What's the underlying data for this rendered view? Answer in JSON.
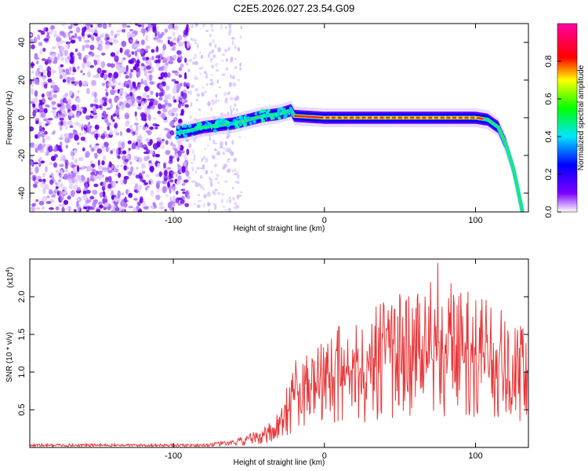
{
  "title": "C2E5.2026.027.23.54.G09",
  "chart_data": [
    {
      "type": "heatmap",
      "name": "spectrogram",
      "xlabel": "Height of straight line (km)",
      "ylabel": "Frequency (Hz)",
      "xlim": [
        -195,
        135
      ],
      "ylim": [
        -50,
        50
      ],
      "xticks": [
        -100,
        0,
        100
      ],
      "yticks": [
        -40,
        -20,
        0,
        20,
        40
      ],
      "noise_region_x": [
        -195,
        -90
      ],
      "noise_sparse_x": [
        -90,
        -55
      ],
      "track": [
        {
          "x": -98,
          "y": -8
        },
        {
          "x": -90,
          "y": -7
        },
        {
          "x": -80,
          "y": -5
        },
        {
          "x": -70,
          "y": -4
        },
        {
          "x": -60,
          "y": -3
        },
        {
          "x": -50,
          "y": -1
        },
        {
          "x": -40,
          "y": 1
        },
        {
          "x": -30,
          "y": 2
        },
        {
          "x": -22,
          "y": 4
        },
        {
          "x": -20,
          "y": 1
        },
        {
          "x": 0,
          "y": 0
        },
        {
          "x": 50,
          "y": 0
        },
        {
          "x": 100,
          "y": 0
        },
        {
          "x": 108,
          "y": -1
        },
        {
          "x": 115,
          "y": -5
        },
        {
          "x": 120,
          "y": -14
        },
        {
          "x": 125,
          "y": -27
        },
        {
          "x": 128,
          "y": -38
        },
        {
          "x": 131,
          "y": -50
        }
      ],
      "colorbar": {
        "label": "Normalized spectral amplitude",
        "ticks": [
          0.0,
          0.2,
          0.4,
          0.6,
          0.8
        ],
        "range": [
          0,
          1
        ]
      }
    },
    {
      "type": "line",
      "name": "snr",
      "xlabel": "Height of straight line (km)",
      "ylabel": "SNR (10 * v/v)",
      "scale_label": "(x10",
      "scale_exp": "4",
      "xlim": [
        -195,
        135
      ],
      "ylim": [
        0,
        2.5
      ],
      "xticks": [
        -100,
        0,
        100
      ],
      "yticks": [
        0.5,
        1.0,
        1.5,
        2.0
      ],
      "ytick_labels": [
        "0.5",
        "1.0",
        "1.5",
        "2.0"
      ],
      "envelope": [
        {
          "x": -195,
          "y": 0.03
        },
        {
          "x": -80,
          "y": 0.03
        },
        {
          "x": -60,
          "y": 0.06
        },
        {
          "x": -40,
          "y": 0.15
        },
        {
          "x": -30,
          "y": 0.3
        },
        {
          "x": -20,
          "y": 0.7
        },
        {
          "x": -10,
          "y": 0.9
        },
        {
          "x": 0,
          "y": 0.8
        },
        {
          "x": 10,
          "y": 1.0
        },
        {
          "x": 20,
          "y": 0.95
        },
        {
          "x": 30,
          "y": 1.05
        },
        {
          "x": 40,
          "y": 1.25
        },
        {
          "x": 60,
          "y": 1.2
        },
        {
          "x": 75,
          "y": 1.35
        },
        {
          "x": 90,
          "y": 1.25
        },
        {
          "x": 110,
          "y": 1.2
        },
        {
          "x": 125,
          "y": 1.1
        },
        {
          "x": 135,
          "y": 1.0
        }
      ],
      "peak": {
        "x": 75,
        "y": 2.45
      },
      "color": "#e8383a"
    }
  ]
}
